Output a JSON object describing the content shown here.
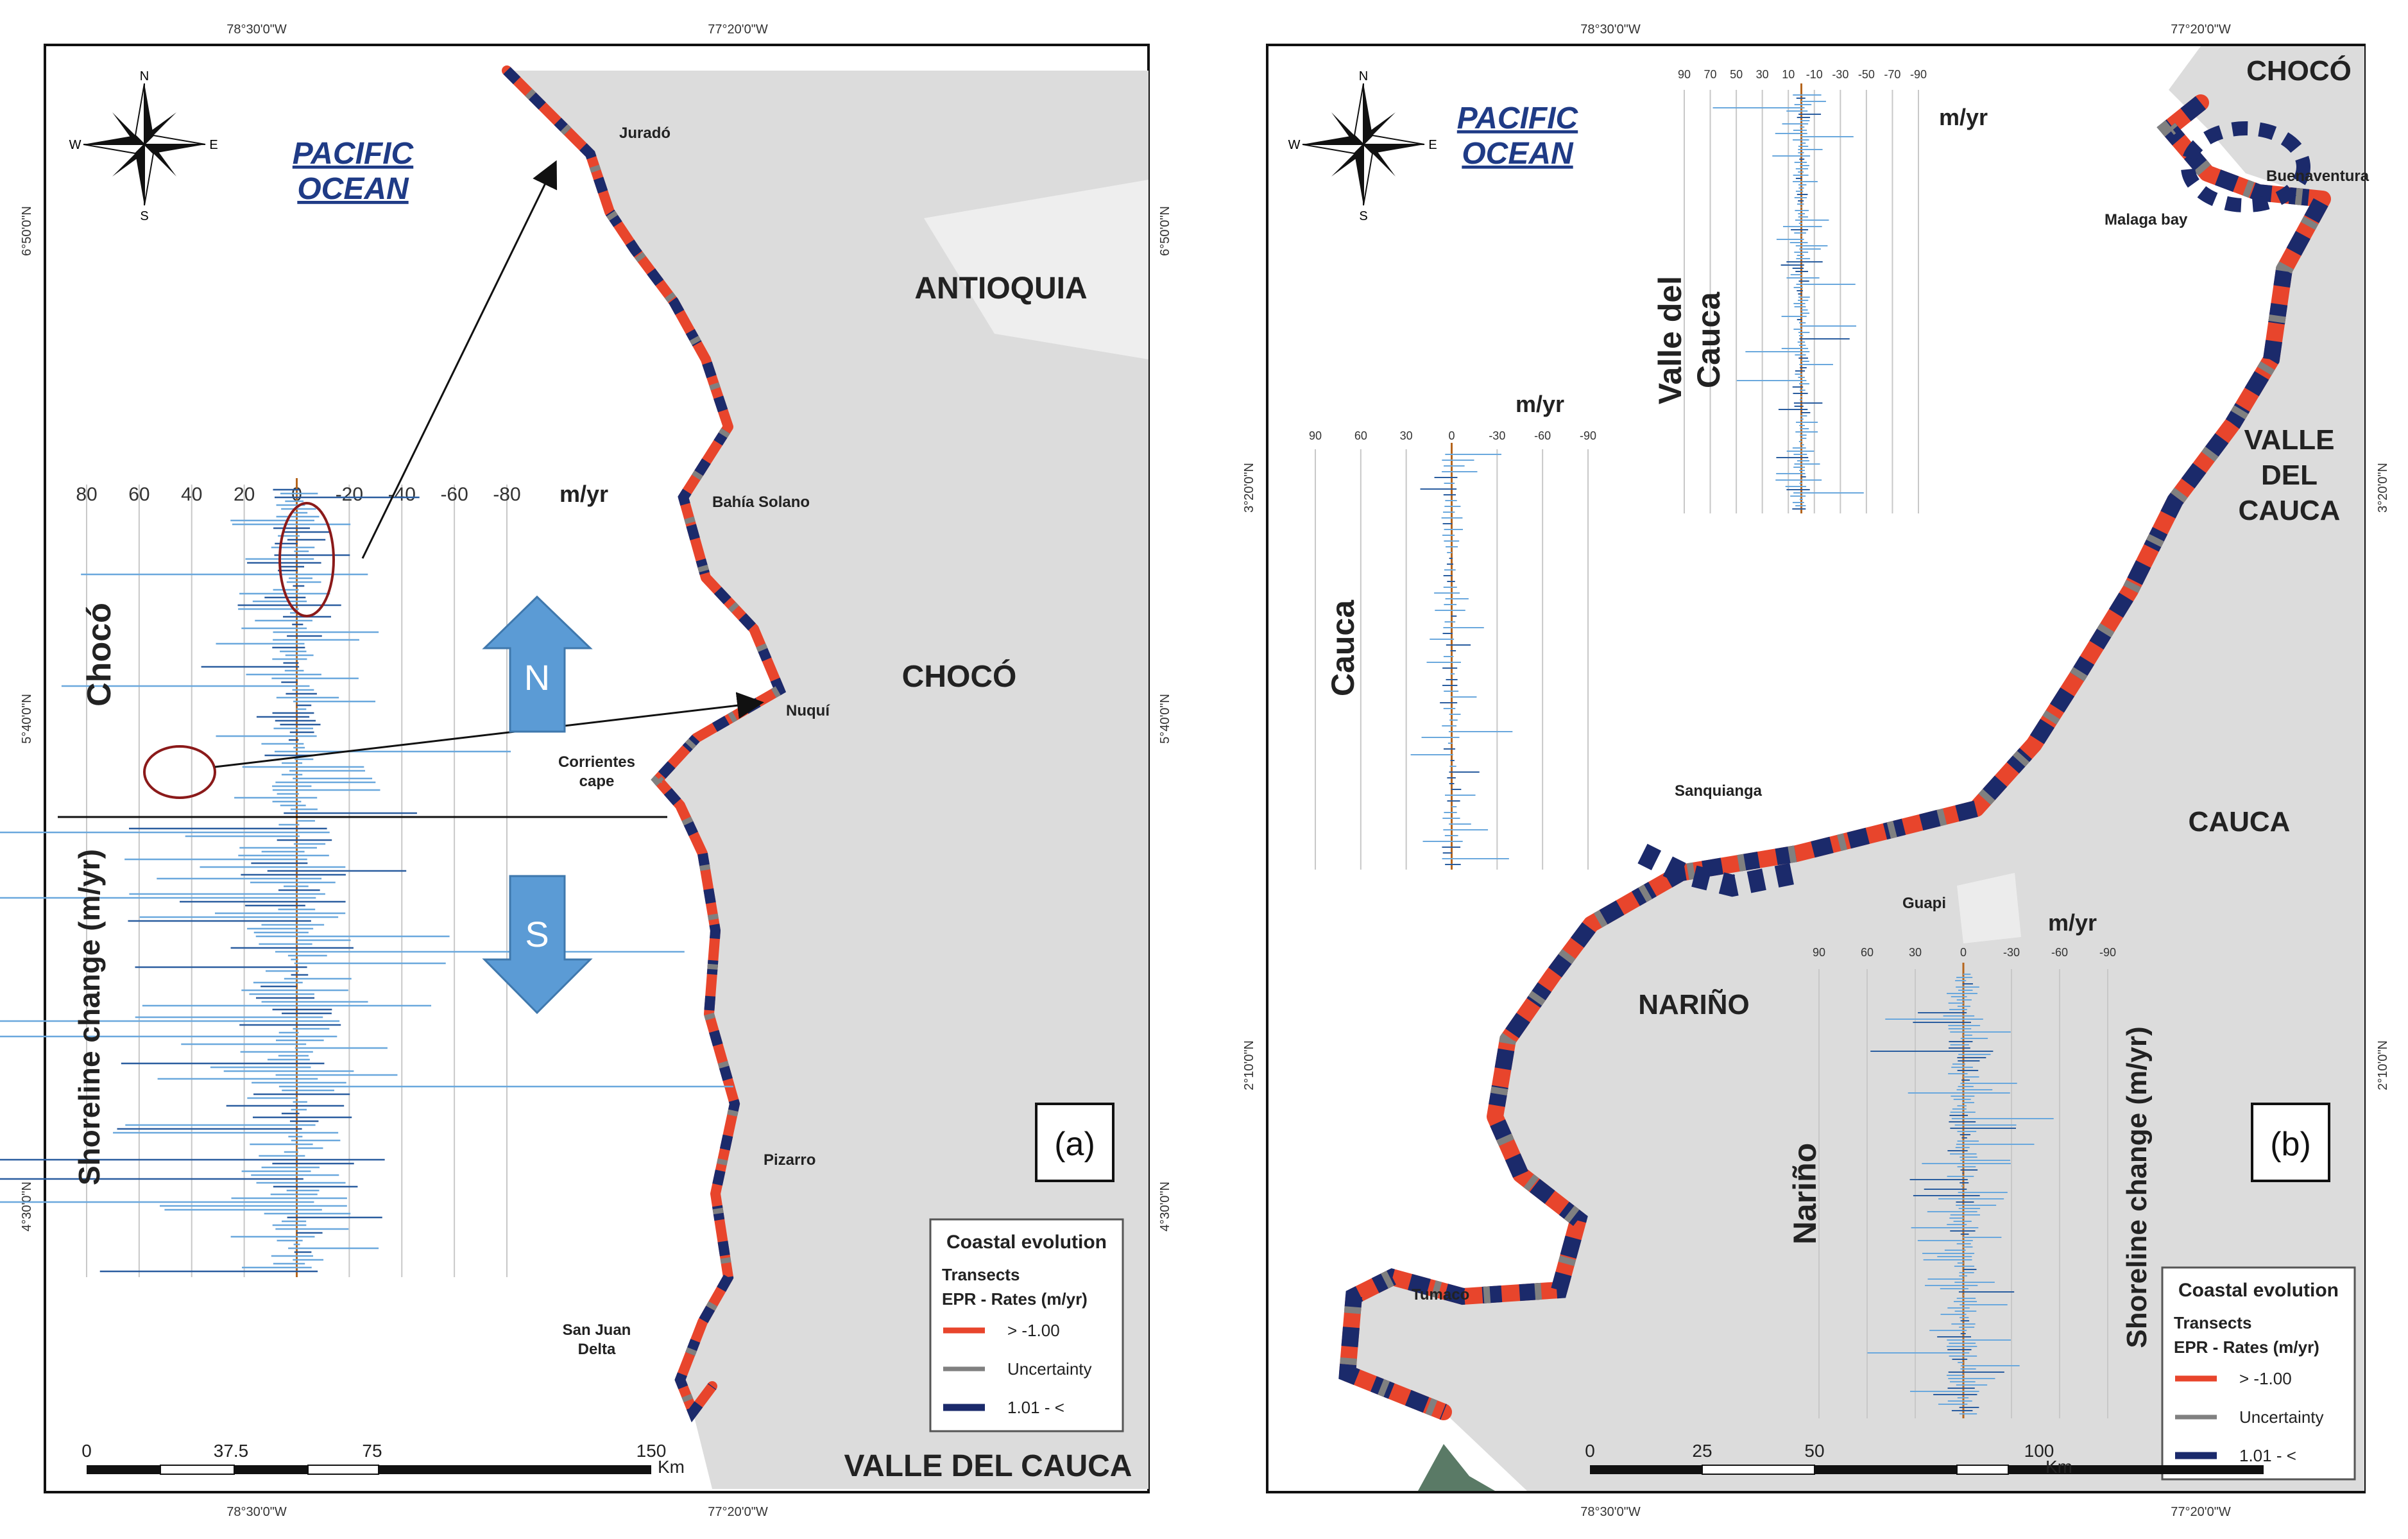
{
  "panel_a": {
    "compass": {
      "n": "N",
      "s": "S",
      "e": "E",
      "w": "W"
    },
    "ocean": [
      "PACIFIC",
      "OCEAN"
    ],
    "coord_top": [
      "78°30'0\"W",
      "77°20'0\"W"
    ],
    "coord_bottom": [
      "78°30'0\"W",
      "77°20'0\"W"
    ],
    "coord_left": [
      "6°50'0\"N",
      "5°40'0\"N",
      "4°30'0\"N"
    ],
    "coord_right": [
      "6°50'0\"N",
      "5°40'0\"N",
      "4°30'0\"N"
    ],
    "regions": {
      "antioquia": "ANTIOQUIA",
      "choco": "CHOCÓ",
      "valle": "VALLE DEL CAUCA"
    },
    "places": {
      "jurado": "Juradó",
      "bahia_solano": "Bahía Solano",
      "nuqui": "Nuquí",
      "corrientes": [
        "Corrientes",
        "cape"
      ],
      "pizarro": "Pizarro",
      "san_juan": [
        "San Juan",
        "Delta"
      ]
    },
    "axis": {
      "ticks": [
        "80",
        "60",
        "40",
        "20",
        "0",
        "-20",
        "-40",
        "-60",
        "-80"
      ],
      "unit": "m/yr"
    },
    "province_label": "Chocó",
    "ylabel": "Shoreline change (m/yr)",
    "arrow_n": "N",
    "arrow_s": "S",
    "panel_label": "(a)",
    "scale": {
      "ticks": [
        "0",
        "37.5",
        "75",
        "150"
      ],
      "unit": "Km"
    },
    "legend": {
      "title": "Coastal evolution",
      "sub1": "Transects",
      "sub2": "EPR - Rates (m/yr)",
      "item1": "> -1.00",
      "item2": "Uncertainty",
      "item3": "1.01 - <"
    }
  },
  "panel_b": {
    "compass": {
      "n": "N",
      "s": "S",
      "e": "E",
      "w": "W"
    },
    "ocean": [
      "PACIFIC",
      "OCEAN"
    ],
    "coord_top": [
      "78°30'0\"W",
      "77°20'0\"W"
    ],
    "coord_bottom": [
      "78°30'0\"W",
      "77°20'0\"W"
    ],
    "coord_left": [
      "3°20'0\"N",
      "2°10'0\"N"
    ],
    "coord_right": [
      "3°20'0\"N",
      "2°10'0\"N"
    ],
    "regions": {
      "choco": "CHOCÓ",
      "valle": [
        "VALLE",
        "DEL",
        "CAUCA"
      ],
      "cauca": "CAUCA",
      "narino": "NARIÑO"
    },
    "places": {
      "buenaventura": "Buenaventura",
      "malaga": "Malaga bay",
      "sanquianga": "Sanquianga",
      "guapi": "Guapi",
      "tumaco": "Tumaco"
    },
    "inset_valle": {
      "label": [
        "Valle del",
        "Cauca"
      ],
      "ticks": [
        "90",
        "70",
        "50",
        "30",
        "10",
        "-10",
        "-30",
        "-50",
        "-70",
        "-90"
      ],
      "unit": "m/yr"
    },
    "inset_cauca": {
      "label": "Cauca",
      "ticks": [
        "90",
        "60",
        "30",
        "0",
        "-30",
        "-60",
        "-90"
      ],
      "unit": "m/yr"
    },
    "inset_narino": {
      "label": "Nariño",
      "ticks": [
        "90",
        "60",
        "30",
        "0",
        "-30",
        "-60",
        "-90"
      ],
      "unit": "m/yr"
    },
    "ylabel": "Shoreline change (m/yr)",
    "panel_label": "(b)",
    "scale": {
      "ticks": [
        "0",
        "25",
        "50",
        "100"
      ],
      "unit": "Km"
    },
    "legend": {
      "title": "Coastal evolution",
      "sub1": "Transects",
      "sub2": "EPR - Rates (m/yr)",
      "item1": "> -1.00",
      "item2": "Uncertainty",
      "item3": "1.01 - <"
    }
  },
  "colors": {
    "erosion": "#e8452c",
    "accretion": "#1b2a6b",
    "uncertainty": "#808080",
    "land": "#dcdcdc",
    "chart_line": "#4a90d0",
    "arrow": "#5b9bd5",
    "ellipse": "#8b1a1a"
  }
}
